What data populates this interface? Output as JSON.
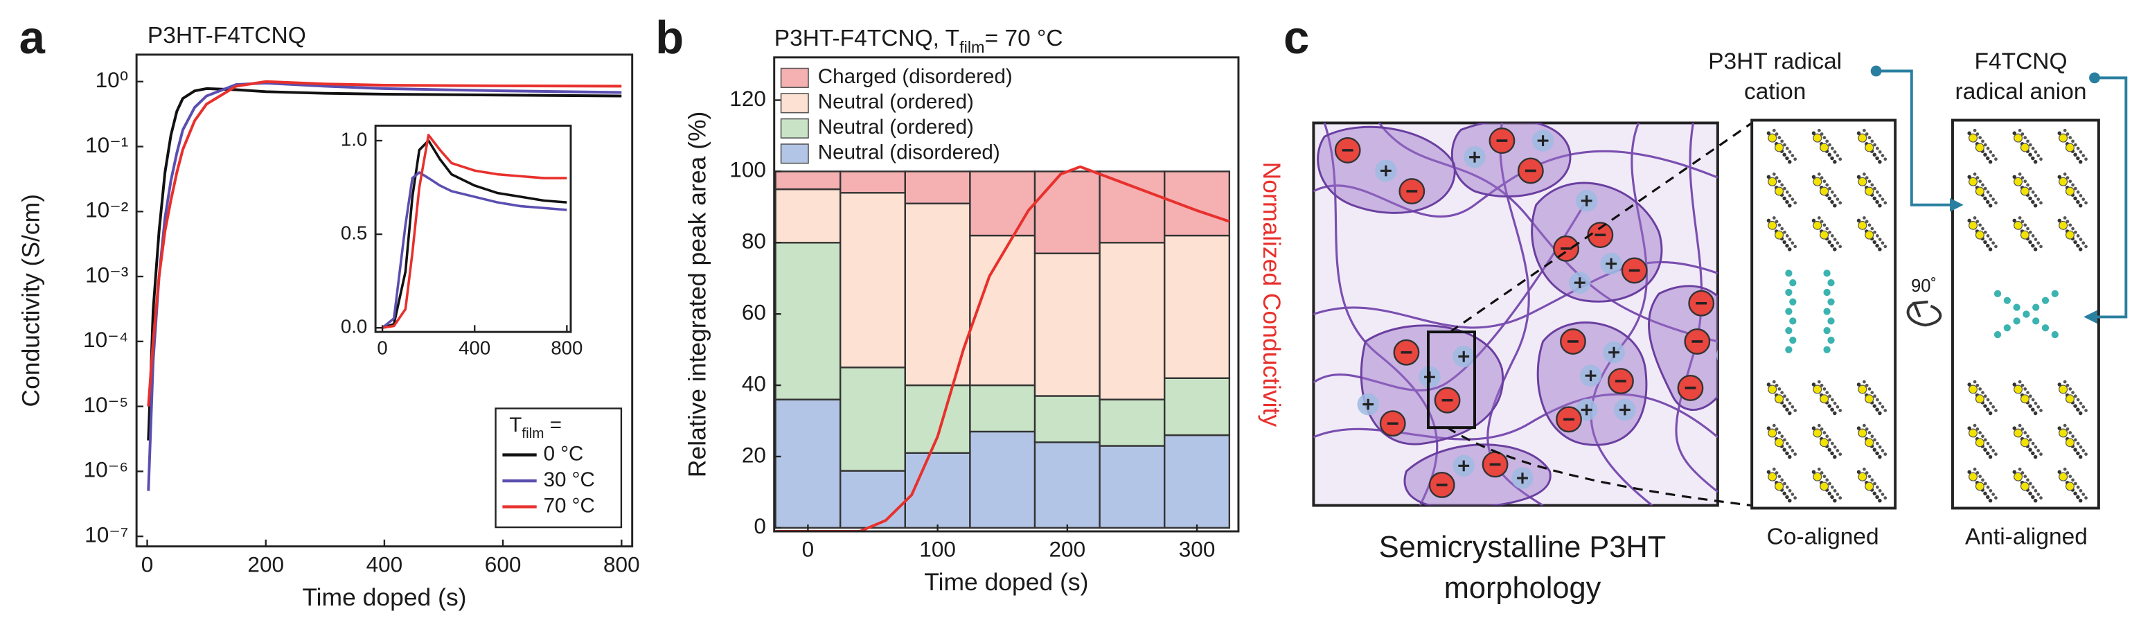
{
  "panel_labels": [
    "a",
    "b",
    "c"
  ],
  "chart_data": [
    {
      "type": "line",
      "title": "P3HT-F4TCNQ",
      "xlabel": "Time doped (s)",
      "ylabel": "Conductivity (S/cm)",
      "ylog": true,
      "xlim": [
        -18,
        818
      ],
      "ylim": [
        7e-08,
        2.6
      ],
      "xticks": [
        0,
        200,
        400,
        600,
        800
      ],
      "yticks": [
        {
          "value": 1,
          "label": "10⁰"
        },
        {
          "value": 0.1,
          "label": "10⁻¹"
        },
        {
          "value": 0.01,
          "label": "10⁻²"
        },
        {
          "value": 0.001,
          "label": "10⁻³"
        },
        {
          "value": 0.0001,
          "label": "10⁻⁴"
        },
        {
          "value": 1e-05,
          "label": "10⁻⁵"
        },
        {
          "value": 1e-06,
          "label": "10⁻⁶"
        },
        {
          "value": 1e-07,
          "label": "10⁻⁷"
        }
      ],
      "legend": "lower right",
      "legend_title": [
        "T",
        "film",
        " ="
      ],
      "series": [
        {
          "name": "0 °C",
          "color": "#111111",
          "x": [
            2,
            10,
            20,
            30,
            40,
            50,
            60,
            80,
            100,
            150,
            200,
            300,
            400,
            600,
            800
          ],
          "values": [
            3e-06,
            0.0003,
            0.005,
            0.04,
            0.15,
            0.35,
            0.55,
            0.72,
            0.78,
            0.75,
            0.7,
            0.66,
            0.64,
            0.62,
            0.6
          ]
        },
        {
          "name": "30 °C",
          "color": "#5a4fb0",
          "x": [
            2,
            10,
            20,
            30,
            40,
            50,
            60,
            80,
            100,
            150,
            200,
            300,
            400,
            600,
            800
          ],
          "values": [
            5e-07,
            5e-05,
            0.001,
            0.008,
            0.03,
            0.08,
            0.18,
            0.4,
            0.6,
            0.9,
            0.95,
            0.85,
            0.78,
            0.72,
            0.68
          ]
        },
        {
          "name": "70 °C",
          "color": "#e8302c",
          "x": [
            2,
            10,
            20,
            30,
            40,
            50,
            60,
            80,
            100,
            150,
            200,
            300,
            400,
            600,
            800
          ],
          "values": [
            1e-05,
            0.0001,
            0.001,
            0.005,
            0.015,
            0.04,
            0.09,
            0.25,
            0.45,
            0.85,
            1.0,
            0.92,
            0.88,
            0.86,
            0.85
          ]
        }
      ]
    },
    {
      "type": "line",
      "xlim": [
        -30,
        817
      ],
      "ylim": [
        -0.022,
        1.08
      ],
      "xticks": [
        0,
        400,
        800
      ],
      "yticks": [
        {
          "value": 0,
          "label": "0.0"
        },
        {
          "value": 0.5,
          "label": "0.5"
        },
        {
          "value": 1,
          "label": "1.0"
        }
      ],
      "series": [
        {
          "color": "#111111",
          "x": [
            0,
            50,
            100,
            130,
            160,
            200,
            250,
            300,
            400,
            500,
            600,
            700,
            800
          ],
          "values": [
            0,
            0.02,
            0.3,
            0.7,
            0.95,
            1.0,
            0.9,
            0.82,
            0.76,
            0.72,
            0.7,
            0.68,
            0.67
          ]
        },
        {
          "color": "#5a4fb0",
          "x": [
            0,
            50,
            100,
            130,
            160,
            200,
            250,
            300,
            400,
            500,
            600,
            700,
            800
          ],
          "values": [
            0,
            0.05,
            0.55,
            0.8,
            0.83,
            0.8,
            0.76,
            0.73,
            0.7,
            0.67,
            0.65,
            0.64,
            0.63
          ]
        },
        {
          "color": "#e8302c",
          "x": [
            0,
            50,
            100,
            130,
            160,
            200,
            250,
            300,
            400,
            500,
            600,
            700,
            800
          ],
          "values": [
            0,
            0.01,
            0.1,
            0.4,
            0.75,
            1.03,
            0.95,
            0.88,
            0.84,
            0.82,
            0.81,
            0.8,
            0.8
          ]
        }
      ]
    },
    {
      "type": "bar",
      "stacked": true,
      "title": [
        "P3HT-F4TCNQ, T",
        "film",
        "= 70 °C"
      ],
      "xlabel": "Time doped (s)",
      "ylabel": "Relative integrated peak area (%)",
      "y2label": "Normalized Conductivity",
      "xlim": [
        -26,
        332
      ],
      "ylim": [
        -1,
        132
      ],
      "y2lim": [
        0,
        1.3
      ],
      "xticks": [
        0,
        100,
        200,
        300
      ],
      "yticks": [
        0,
        20,
        40,
        60,
        80,
        100,
        120
      ],
      "legend": "upper left",
      "x": [
        0,
        50,
        100,
        150,
        200,
        250,
        300
      ],
      "series": [
        {
          "name": "Neutral (disordered)",
          "color": "#b3c5e6",
          "values": [
            36,
            16,
            21,
            27,
            24,
            23,
            26
          ]
        },
        {
          "name": "Neutral (ordered)",
          "color": "#c8e3c6",
          "values": [
            44,
            29,
            19,
            13,
            13,
            13,
            16
          ]
        },
        {
          "name": "Neutral (ordered)",
          "color": "#fde1d2",
          "values": [
            15,
            49,
            51,
            42,
            40,
            44,
            40
          ]
        },
        {
          "name": "Charged (disordered)",
          "color": "#f5b0b2",
          "values": [
            5,
            6,
            9,
            18,
            23,
            20,
            18
          ]
        },
        {
          "type": "line",
          "axis": "y2",
          "color": "#e8302c",
          "x": [
            -25,
            40,
            60,
            80,
            100,
            120,
            140,
            170,
            195,
            210,
            240,
            270,
            300,
            325
          ],
          "values": [
            0,
            0,
            0.03,
            0.1,
            0.26,
            0.5,
            0.7,
            0.88,
            0.98,
            1.0,
            0.96,
            0.92,
            0.88,
            0.85
          ]
        }
      ]
    }
  ],
  "diagram": {
    "morphology_label": [
      "Semicrystalline P3HT",
      "morphology"
    ],
    "cation_label": [
      "P3HT radical",
      "cation"
    ],
    "anion_label": [
      "F4TCNQ",
      "radical anion"
    ],
    "co_aligned": "Co-aligned",
    "anti_aligned": "Anti-aligned",
    "rotation": "90˚"
  }
}
